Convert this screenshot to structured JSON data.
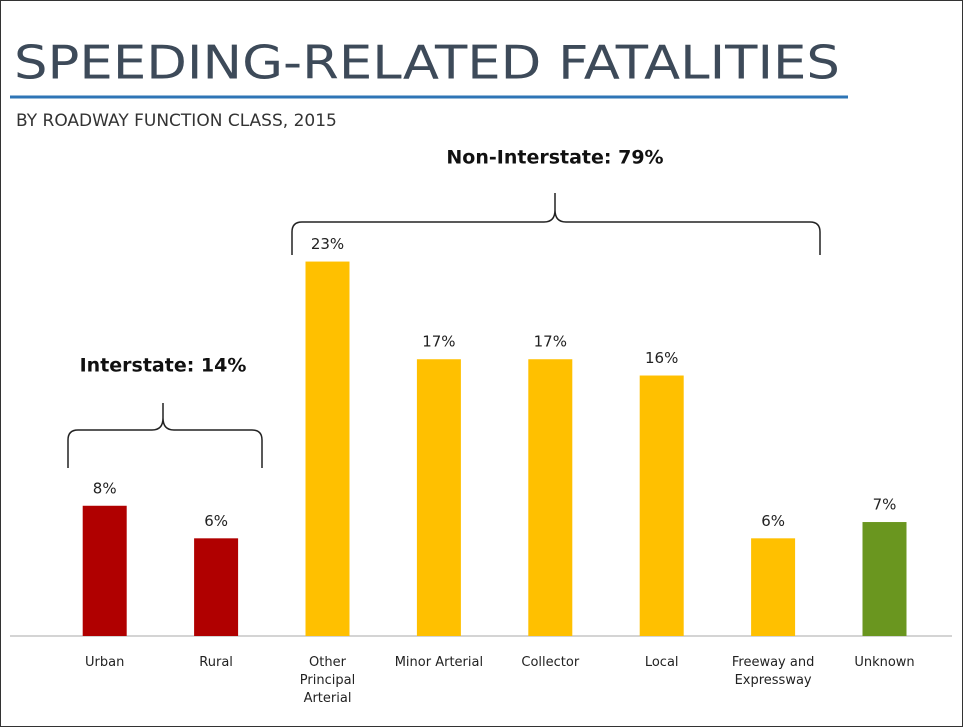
{
  "chart_data": {
    "type": "bar",
    "title": "SPEEDING-RELATED FATALITIES",
    "subtitle": "BY ROADWAY FUNCTION  CLASS, 2015",
    "annotations": [
      "Interstate: 14%",
      "Non-Interstate: 79%"
    ],
    "categories": [
      "Urban",
      "Rural",
      "Other Principal Arterial",
      "Minor Arterial",
      "Collector",
      "Local",
      "Freeway and Expressway",
      "Unknown"
    ],
    "values": [
      8,
      6,
      23,
      17,
      17,
      16,
      6,
      7
    ],
    "value_labels": [
      "8%",
      "6%",
      "23%",
      "17%",
      "17%",
      "16%",
      "6%",
      "7%"
    ],
    "colors": [
      "#b00000",
      "#b00000",
      "#ffc000",
      "#ffc000",
      "#ffc000",
      "#ffc000",
      "#ffc000",
      "#6a961f"
    ],
    "ylim": [
      0,
      25
    ]
  }
}
